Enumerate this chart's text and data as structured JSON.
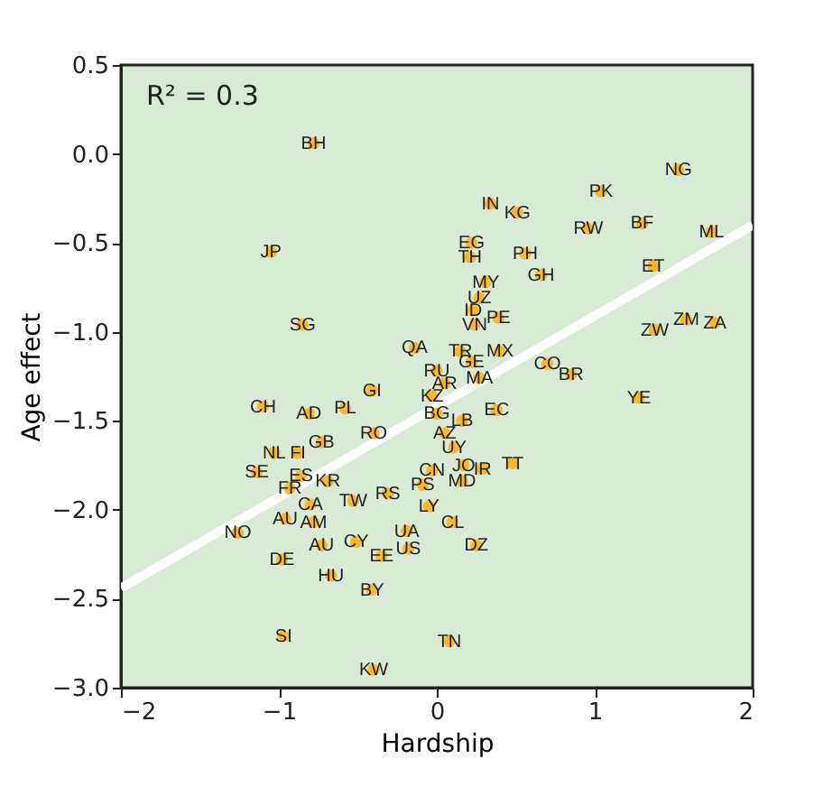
{
  "chart_data": {
    "type": "scatter",
    "xlabel": "Hardship",
    "ylabel": "Age effect",
    "annotations": [
      "R² = 0.3"
    ],
    "xlim": [
      -2,
      2
    ],
    "ylim": [
      -3.0,
      0.5
    ],
    "xticks": [
      {
        "value": -2,
        "label": "−2"
      },
      {
        "value": -1,
        "label": "−1"
      },
      0,
      1,
      2
    ],
    "yticks": [
      {
        "value": 0.5,
        "label": "0.5"
      },
      {
        "value": 0,
        "label": "0.0"
      },
      {
        "value": -0.5,
        "label": "−0.5"
      },
      {
        "value": -1,
        "label": "−1.0"
      },
      {
        "value": -1.5,
        "label": "−1.5"
      },
      {
        "value": -2,
        "label": "−2.0"
      },
      {
        "value": -2.5,
        "label": "−2.5"
      },
      {
        "value": -3,
        "label": "−3.0"
      }
    ],
    "grid": false,
    "marker": "circle",
    "series": [
      {
        "color": "#f9b92a",
        "x": [
          -0.78,
          -1.05,
          -0.85,
          -0.14,
          1.53,
          1.04,
          0.34,
          0.51,
          0.96,
          1.3,
          1.74,
          0.22,
          0.21,
          0.56,
          0.66,
          1.37,
          0.31,
          0.27,
          0.23,
          0.39,
          0.24,
          1.38,
          1.58,
          1.76,
          0.15,
          0.22,
          0.4,
          0.7,
          0.85,
          0.0,
          0.05,
          0.27,
          -0.03,
          0.0,
          0.16,
          0.38,
          0.05,
          0.11,
          0.17,
          0.29,
          0.48,
          -0.03,
          0.16,
          -0.09,
          -0.05,
          0.1,
          1.28,
          0.25,
          0.08,
          -1.1,
          -0.81,
          -0.58,
          -0.41,
          -0.73,
          -0.4,
          -1.03,
          -0.88,
          -1.14,
          -0.86,
          -0.93,
          -0.69,
          -0.8,
          -0.53,
          -0.31,
          -0.96,
          -0.78,
          -1.26,
          -0.73,
          -0.51,
          -0.19,
          -0.18,
          -0.35,
          -0.98,
          -0.67,
          -0.41,
          -0.97,
          -0.4
        ],
        "values": [
          0.06,
          -0.55,
          -0.96,
          -1.09,
          -0.09,
          -0.21,
          -0.28,
          -0.33,
          -0.42,
          -0.39,
          -0.44,
          -0.5,
          -0.58,
          -0.56,
          -0.68,
          -0.63,
          -0.72,
          -0.81,
          -0.88,
          -0.92,
          -0.96,
          -0.99,
          -0.93,
          -0.95,
          -1.11,
          -1.17,
          -1.11,
          -1.18,
          -1.24,
          -1.22,
          -1.29,
          -1.26,
          -1.36,
          -1.46,
          -1.5,
          -1.44,
          -1.57,
          -1.65,
          -1.75,
          -1.77,
          -1.74,
          -1.78,
          -1.84,
          -1.86,
          -1.98,
          -2.07,
          -1.37,
          -2.2,
          -2.74,
          -1.42,
          -1.46,
          -1.43,
          -1.33,
          -1.62,
          -1.57,
          -1.68,
          -1.68,
          -1.79,
          -1.81,
          -1.88,
          -1.84,
          -1.97,
          -1.95,
          -1.91,
          -2.05,
          -2.07,
          -2.13,
          -2.2,
          -2.18,
          -2.12,
          -2.22,
          -2.26,
          -2.28,
          -2.37,
          -2.45,
          -2.71,
          -2.9
        ],
        "value_labels": [
          "BH",
          "JP",
          "SG",
          "QA",
          "NG",
          "PK",
          "IN",
          "KG",
          "RW",
          "BF",
          "ML",
          "EG",
          "TH",
          "PH",
          "GH",
          "ET",
          "MY",
          "UZ",
          "ID",
          "PE",
          "VN",
          "ZW",
          "ZM",
          "ZA",
          "TR",
          "GE",
          "MX",
          "CO",
          "BR",
          "RU",
          "AR",
          "MA",
          "KZ",
          "BG",
          "LB",
          "EC",
          "AZ",
          "UY",
          "JO",
          "IR",
          "TT",
          "CN",
          "MD",
          "PS",
          "LY",
          "CL",
          "YE",
          "DZ",
          "TN",
          "CH",
          "AD",
          "PL",
          "GI",
          "GB",
          "RO",
          "NL",
          "FI",
          "SE",
          "ES",
          "FR",
          "KR",
          "CA",
          "TW",
          "RS",
          "AU",
          "AM",
          "NO",
          "AU",
          "CY",
          "UA",
          "US",
          "EE",
          "DE",
          "HU",
          "BY",
          "SI",
          "KW"
        ]
      },
      {
        "type": "line",
        "marker": "none",
        "color": "#ffffff",
        "x": [
          -2,
          2
        ],
        "values": [
          -2.44,
          -0.4
        ]
      }
    ]
  }
}
